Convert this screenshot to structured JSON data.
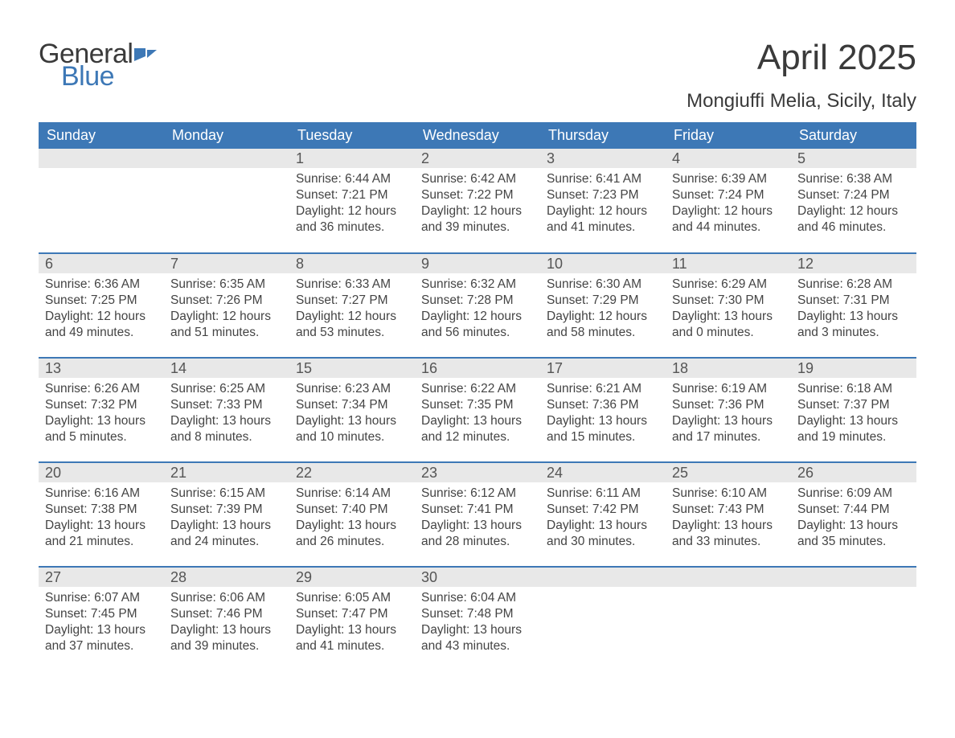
{
  "logo": {
    "general": "General",
    "blue": "Blue"
  },
  "title": "April 2025",
  "location": "Mongiuffi Melia, Sicily, Italy",
  "colors": {
    "header_bg": "#3d78b6",
    "header_text": "#ffffff",
    "daynum_bg": "#e8e8e8",
    "text": "#3a3a3a",
    "logo_blue": "#3d78b6",
    "page_bg": "#ffffff"
  },
  "weekdays": [
    "Sunday",
    "Monday",
    "Tuesday",
    "Wednesday",
    "Thursday",
    "Friday",
    "Saturday"
  ],
  "weeks": [
    [
      null,
      null,
      {
        "d": "1",
        "sr": "6:44 AM",
        "ss": "7:21 PM",
        "dl": "12 hours and 36 minutes."
      },
      {
        "d": "2",
        "sr": "6:42 AM",
        "ss": "7:22 PM",
        "dl": "12 hours and 39 minutes."
      },
      {
        "d": "3",
        "sr": "6:41 AM",
        "ss": "7:23 PM",
        "dl": "12 hours and 41 minutes."
      },
      {
        "d": "4",
        "sr": "6:39 AM",
        "ss": "7:24 PM",
        "dl": "12 hours and 44 minutes."
      },
      {
        "d": "5",
        "sr": "6:38 AM",
        "ss": "7:24 PM",
        "dl": "12 hours and 46 minutes."
      }
    ],
    [
      {
        "d": "6",
        "sr": "6:36 AM",
        "ss": "7:25 PM",
        "dl": "12 hours and 49 minutes."
      },
      {
        "d": "7",
        "sr": "6:35 AM",
        "ss": "7:26 PM",
        "dl": "12 hours and 51 minutes."
      },
      {
        "d": "8",
        "sr": "6:33 AM",
        "ss": "7:27 PM",
        "dl": "12 hours and 53 minutes."
      },
      {
        "d": "9",
        "sr": "6:32 AM",
        "ss": "7:28 PM",
        "dl": "12 hours and 56 minutes."
      },
      {
        "d": "10",
        "sr": "6:30 AM",
        "ss": "7:29 PM",
        "dl": "12 hours and 58 minutes."
      },
      {
        "d": "11",
        "sr": "6:29 AM",
        "ss": "7:30 PM",
        "dl": "13 hours and 0 minutes."
      },
      {
        "d": "12",
        "sr": "6:28 AM",
        "ss": "7:31 PM",
        "dl": "13 hours and 3 minutes."
      }
    ],
    [
      {
        "d": "13",
        "sr": "6:26 AM",
        "ss": "7:32 PM",
        "dl": "13 hours and 5 minutes."
      },
      {
        "d": "14",
        "sr": "6:25 AM",
        "ss": "7:33 PM",
        "dl": "13 hours and 8 minutes."
      },
      {
        "d": "15",
        "sr": "6:23 AM",
        "ss": "7:34 PM",
        "dl": "13 hours and 10 minutes."
      },
      {
        "d": "16",
        "sr": "6:22 AM",
        "ss": "7:35 PM",
        "dl": "13 hours and 12 minutes."
      },
      {
        "d": "17",
        "sr": "6:21 AM",
        "ss": "7:36 PM",
        "dl": "13 hours and 15 minutes."
      },
      {
        "d": "18",
        "sr": "6:19 AM",
        "ss": "7:36 PM",
        "dl": "13 hours and 17 minutes."
      },
      {
        "d": "19",
        "sr": "6:18 AM",
        "ss": "7:37 PM",
        "dl": "13 hours and 19 minutes."
      }
    ],
    [
      {
        "d": "20",
        "sr": "6:16 AM",
        "ss": "7:38 PM",
        "dl": "13 hours and 21 minutes."
      },
      {
        "d": "21",
        "sr": "6:15 AM",
        "ss": "7:39 PM",
        "dl": "13 hours and 24 minutes."
      },
      {
        "d": "22",
        "sr": "6:14 AM",
        "ss": "7:40 PM",
        "dl": "13 hours and 26 minutes."
      },
      {
        "d": "23",
        "sr": "6:12 AM",
        "ss": "7:41 PM",
        "dl": "13 hours and 28 minutes."
      },
      {
        "d": "24",
        "sr": "6:11 AM",
        "ss": "7:42 PM",
        "dl": "13 hours and 30 minutes."
      },
      {
        "d": "25",
        "sr": "6:10 AM",
        "ss": "7:43 PM",
        "dl": "13 hours and 33 minutes."
      },
      {
        "d": "26",
        "sr": "6:09 AM",
        "ss": "7:44 PM",
        "dl": "13 hours and 35 minutes."
      }
    ],
    [
      {
        "d": "27",
        "sr": "6:07 AM",
        "ss": "7:45 PM",
        "dl": "13 hours and 37 minutes."
      },
      {
        "d": "28",
        "sr": "6:06 AM",
        "ss": "7:46 PM",
        "dl": "13 hours and 39 minutes."
      },
      {
        "d": "29",
        "sr": "6:05 AM",
        "ss": "7:47 PM",
        "dl": "13 hours and 41 minutes."
      },
      {
        "d": "30",
        "sr": "6:04 AM",
        "ss": "7:48 PM",
        "dl": "13 hours and 43 minutes."
      },
      null,
      null,
      null
    ]
  ],
  "labels": {
    "sunrise": "Sunrise: ",
    "sunset": "Sunset: ",
    "daylight": "Daylight: "
  }
}
